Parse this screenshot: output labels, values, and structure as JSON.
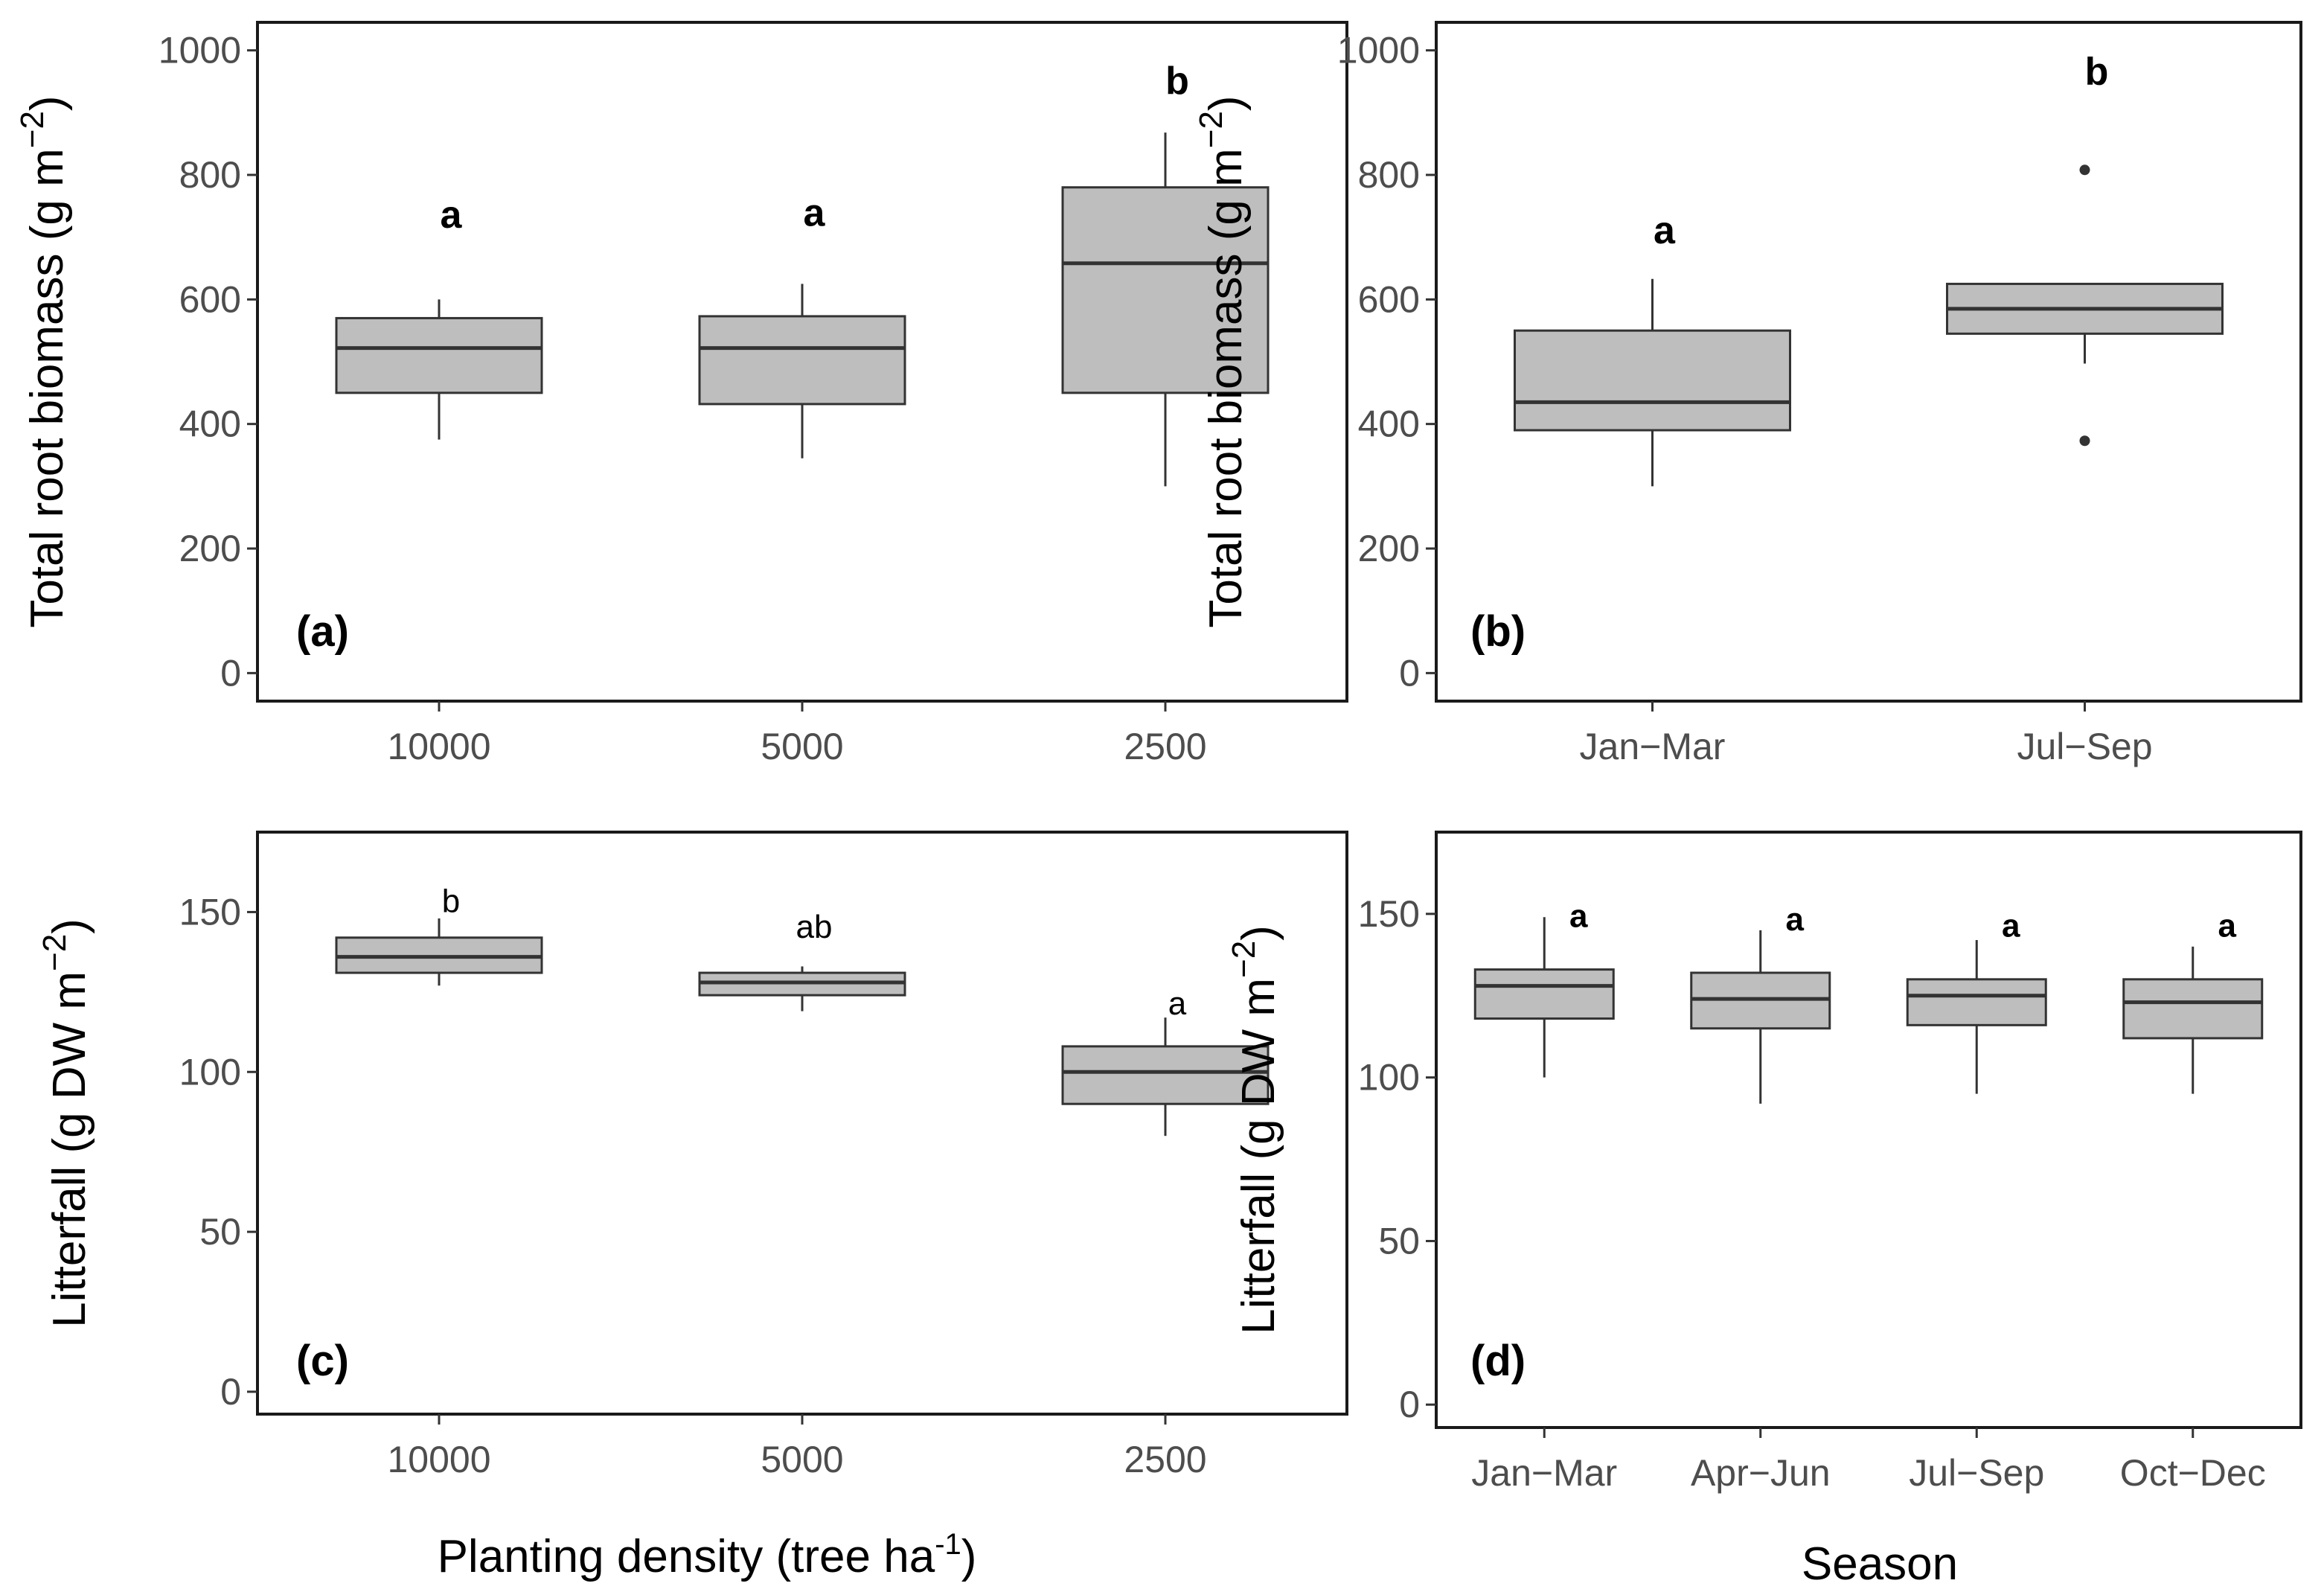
{
  "colors": {
    "box_fill": "#bebebe",
    "box_stroke": "#333333",
    "frame": "#1a1a1a",
    "tick_text": "#4d4d4d"
  },
  "shared_labels": {
    "planting_density": "Planting density (tree ha",
    "planting_density_sup": "-1",
    "planting_density_close": ")",
    "season": "Season"
  },
  "chart_data": [
    {
      "type": "box",
      "id": "a",
      "panel_label": "(a)",
      "ylabel": "Total root biomass (g m",
      "ylabel_sup": "−2",
      "ylabel_close": ")",
      "ylim": [
        -45,
        1045
      ],
      "yticks": [
        0,
        200,
        400,
        600,
        800,
        1000
      ],
      "categories": [
        "10000",
        "5000",
        "2500"
      ],
      "boxes": [
        {
          "whisker_low": 375,
          "q1": 450,
          "median": 522,
          "q3": 570,
          "whisker_high": 600,
          "outliers": [],
          "letter": "a"
        },
        {
          "whisker_low": 345,
          "q1": 432,
          "median": 522,
          "q3": 573,
          "whisker_high": 625,
          "outliers": [],
          "letter": "a"
        },
        {
          "whisker_low": 300,
          "q1": 450,
          "median": 658,
          "q3": 780,
          "whisker_high": 868,
          "outliers": [],
          "letter": "b"
        }
      ],
      "letter_values": [
        715,
        718,
        930
      ],
      "letter_style": "bold"
    },
    {
      "type": "box",
      "id": "b",
      "panel_label": "(b)",
      "ylabel": "Total root biomass (g m",
      "ylabel_sup": "−2",
      "ylabel_close": ")",
      "ylim": [
        -45,
        1045
      ],
      "yticks": [
        0,
        200,
        400,
        600,
        800,
        1000
      ],
      "categories": [
        "Jan−Mar",
        "Jul−Sep"
      ],
      "boxes": [
        {
          "whisker_low": 300,
          "q1": 390,
          "median": 435,
          "q3": 550,
          "whisker_high": 633,
          "outliers": [],
          "letter": "a"
        },
        {
          "whisker_low": 497,
          "q1": 545,
          "median": 585,
          "q3": 625,
          "whisker_high": 625,
          "outliers": [
            808,
            373
          ],
          "letter": "b"
        }
      ],
      "letter_values": [
        690,
        945
      ],
      "letter_style": "bold"
    },
    {
      "type": "box",
      "id": "c",
      "panel_label": "(c)",
      "ylabel": "Litterfall (g DW m",
      "ylabel_sup": "−2",
      "ylabel_close": ")",
      "ylim": [
        -7,
        175
      ],
      "yticks": [
        0,
        50,
        100,
        150
      ],
      "categories": [
        "10000",
        "5000",
        "2500"
      ],
      "boxes": [
        {
          "whisker_low": 127,
          "q1": 131,
          "median": 136,
          "q3": 142,
          "whisker_high": 148,
          "outliers": [],
          "letter": "b"
        },
        {
          "whisker_low": 119,
          "q1": 124,
          "median": 128,
          "q3": 131,
          "whisker_high": 133,
          "outliers": [],
          "letter": "ab"
        },
        {
          "whisker_low": 80,
          "q1": 90,
          "median": 100,
          "q3": 108,
          "whisker_high": 117,
          "outliers": [],
          "letter": "a"
        }
      ],
      "letter_values": [
        150,
        142,
        118
      ],
      "letter_style": "normal"
    },
    {
      "type": "box",
      "id": "d",
      "panel_label": "(d)",
      "ylabel": "Litterfall (g DW m",
      "ylabel_sup": "−2",
      "ylabel_close": ")",
      "ylim": [
        -7,
        175
      ],
      "yticks": [
        0,
        50,
        100,
        150
      ],
      "categories": [
        "Jan−Mar",
        "Apr−Jun",
        "Jul−Sep",
        "Oct−Dec"
      ],
      "boxes": [
        {
          "whisker_low": 100,
          "q1": 118,
          "median": 128,
          "q3": 133,
          "whisker_high": 149,
          "outliers": [],
          "letter": "a"
        },
        {
          "whisker_low": 92,
          "q1": 115,
          "median": 124,
          "q3": 132,
          "whisker_high": 145,
          "outliers": [],
          "letter": "a"
        },
        {
          "whisker_low": 95,
          "q1": 116,
          "median": 125,
          "q3": 130,
          "whisker_high": 142,
          "outliers": [],
          "letter": "a"
        },
        {
          "whisker_low": 95,
          "q1": 112,
          "median": 123,
          "q3": 130,
          "whisker_high": 140,
          "outliers": [],
          "letter": "a"
        }
      ],
      "letter_values": [
        146,
        145,
        143,
        143
      ],
      "letter_style": "bold"
    }
  ]
}
